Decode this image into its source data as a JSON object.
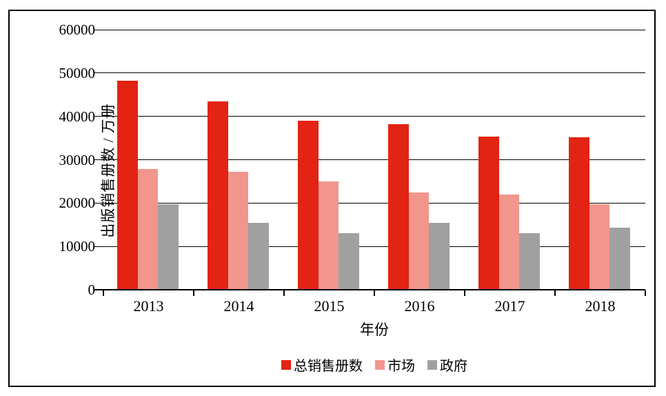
{
  "page": {
    "background": "#ffffff",
    "frame_border_color": "#000000"
  },
  "chart_data": {
    "type": "bar",
    "title": "",
    "xlabel": "年份",
    "ylabel": "出版销售册数 / 万册",
    "categories": [
      "2013",
      "2014",
      "2015",
      "2016",
      "2017",
      "2018"
    ],
    "series": [
      {
        "name": "总销售册数",
        "color": "#E32313",
        "values": [
          48300,
          43500,
          39000,
          38200,
          35300,
          35200
        ]
      },
      {
        "name": "市场",
        "color": "#F2968D",
        "values": [
          27900,
          27200,
          25000,
          22400,
          21900,
          19800
        ]
      },
      {
        "name": "政府",
        "color": "#A0A0A0",
        "values": [
          19800,
          15400,
          13000,
          15400,
          13000,
          14400
        ]
      }
    ],
    "ylim": [
      0,
      60000
    ],
    "yticks": [
      0,
      10000,
      20000,
      30000,
      40000,
      50000,
      60000
    ],
    "grid": true,
    "gridline_color": "#000000",
    "legend_position": "bottom"
  }
}
